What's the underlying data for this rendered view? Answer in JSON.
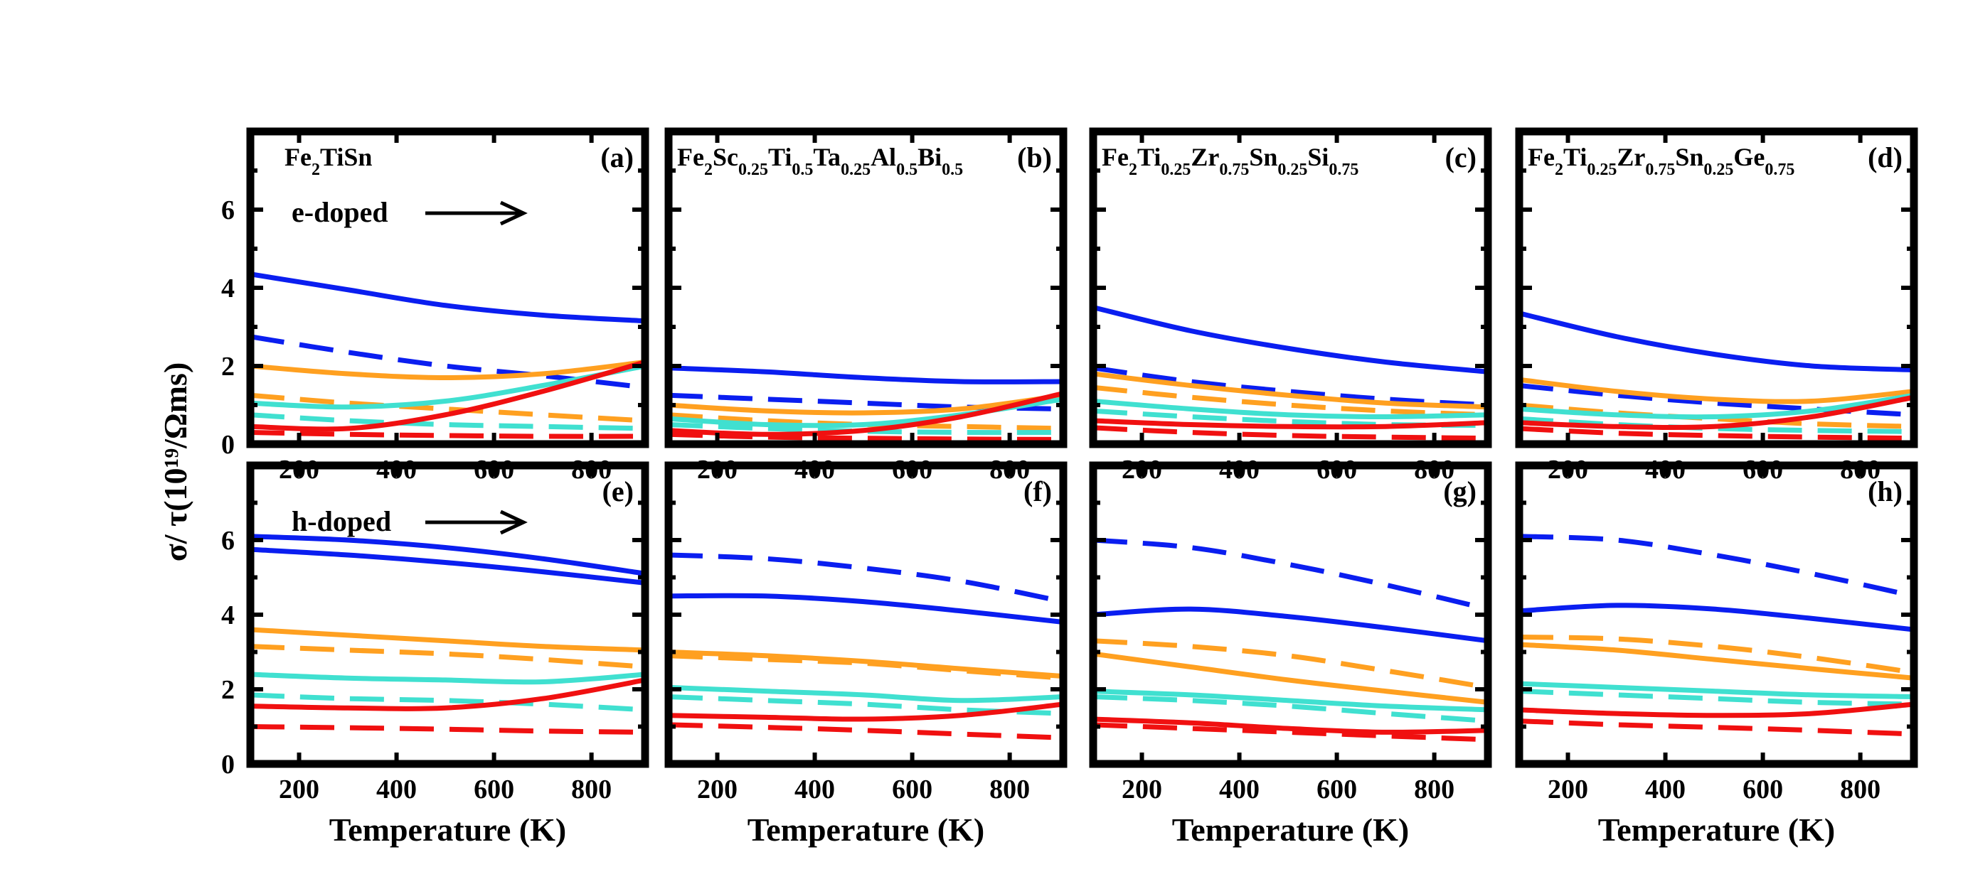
{
  "chart_data": {
    "type": "line",
    "ylabel": "σ/ τ(10¹⁹/Ωms)",
    "xlabel": "Temperature (K)",
    "xlim": [
      100,
      910
    ],
    "ylim": [
      0,
      8
    ],
    "xticks": [
      200,
      400,
      600,
      800
    ],
    "yticks": [
      0,
      2,
      4,
      6
    ],
    "colors": {
      "blue": "#0a1ef0",
      "orange": "#ffa020",
      "cyan": "#40e0d0",
      "red": "#f01010"
    },
    "annotations": {
      "e_doped": "e-doped",
      "h_doped": "h-doped"
    },
    "panels": [
      {
        "id": "a",
        "label": "(a)",
        "title_parts": [
          [
            "Fe",
            "n"
          ],
          [
            "2",
            "s"
          ],
          [
            "TiSn",
            "n"
          ]
        ],
        "annotation": "e_doped",
        "x": [
          100,
          300,
          500,
          700,
          910
        ],
        "series": [
          {
            "color": "blue",
            "style": "solid",
            "values": [
              4.35,
              3.95,
              3.55,
              3.3,
              3.15
            ]
          },
          {
            "color": "blue",
            "style": "dashed",
            "values": [
              2.75,
              2.35,
              2.0,
              1.75,
              1.45
            ]
          },
          {
            "color": "orange",
            "style": "solid",
            "values": [
              2.0,
              1.8,
              1.7,
              1.8,
              2.1
            ]
          },
          {
            "color": "orange",
            "style": "dashed",
            "values": [
              1.25,
              1.05,
              0.9,
              0.75,
              0.6
            ]
          },
          {
            "color": "cyan",
            "style": "solid",
            "values": [
              1.05,
              0.95,
              1.1,
              1.5,
              2.0
            ]
          },
          {
            "color": "cyan",
            "style": "dashed",
            "values": [
              0.75,
              0.6,
              0.5,
              0.45,
              0.4
            ]
          },
          {
            "color": "red",
            "style": "solid",
            "values": [
              0.45,
              0.4,
              0.75,
              1.35,
              2.1
            ]
          },
          {
            "color": "red",
            "style": "dashed",
            "values": [
              0.3,
              0.25,
              0.22,
              0.2,
              0.2
            ]
          }
        ]
      },
      {
        "id": "b",
        "label": "(b)",
        "title_parts": [
          [
            "Fe",
            "n"
          ],
          [
            "2",
            "s"
          ],
          [
            "Sc",
            "n"
          ],
          [
            "0.25",
            "s"
          ],
          [
            "Ti",
            "n"
          ],
          [
            "0.5",
            "s"
          ],
          [
            "Ta",
            "n"
          ],
          [
            "0.25",
            "s"
          ],
          [
            "Al",
            "n"
          ],
          [
            "0.5",
            "s"
          ],
          [
            "Bi",
            "n"
          ],
          [
            "0.5",
            "s"
          ]
        ],
        "annotation": "",
        "x": [
          100,
          300,
          500,
          700,
          910
        ],
        "series": [
          {
            "color": "blue",
            "style": "solid",
            "values": [
              1.95,
              1.85,
              1.7,
              1.6,
              1.6
            ]
          },
          {
            "color": "blue",
            "style": "dashed",
            "values": [
              1.25,
              1.15,
              1.05,
              0.95,
              0.9
            ]
          },
          {
            "color": "orange",
            "style": "solid",
            "values": [
              1.0,
              0.85,
              0.8,
              0.9,
              1.25
            ]
          },
          {
            "color": "orange",
            "style": "dashed",
            "values": [
              0.75,
              0.6,
              0.5,
              0.45,
              0.4
            ]
          },
          {
            "color": "cyan",
            "style": "solid",
            "values": [
              0.65,
              0.5,
              0.5,
              0.75,
              1.15
            ]
          },
          {
            "color": "cyan",
            "style": "dashed",
            "values": [
              0.5,
              0.4,
              0.33,
              0.3,
              0.3
            ]
          },
          {
            "color": "red",
            "style": "solid",
            "values": [
              0.35,
              0.25,
              0.35,
              0.7,
              1.3
            ]
          },
          {
            "color": "red",
            "style": "dashed",
            "values": [
              0.25,
              0.18,
              0.15,
              0.13,
              0.12
            ]
          }
        ]
      },
      {
        "id": "c",
        "label": "(c)",
        "title_parts": [
          [
            "Fe",
            "n"
          ],
          [
            "2",
            "s"
          ],
          [
            "Ti",
            "n"
          ],
          [
            "0.25",
            "s"
          ],
          [
            "Zr",
            "n"
          ],
          [
            "0.75",
            "s"
          ],
          [
            "Sn",
            "n"
          ],
          [
            "0.25",
            "s"
          ],
          [
            "Si",
            "n"
          ],
          [
            "0.75",
            "s"
          ]
        ],
        "annotation": "",
        "x": [
          100,
          300,
          500,
          700,
          910
        ],
        "series": [
          {
            "color": "blue",
            "style": "solid",
            "values": [
              3.5,
              2.9,
              2.45,
              2.1,
              1.85
            ]
          },
          {
            "color": "blue",
            "style": "dashed",
            "values": [
              1.95,
              1.6,
              1.35,
              1.15,
              1.0
            ]
          },
          {
            "color": "orange",
            "style": "solid",
            "values": [
              1.8,
              1.5,
              1.25,
              1.05,
              0.95
            ]
          },
          {
            "color": "orange",
            "style": "dashed",
            "values": [
              1.45,
              1.2,
              1.0,
              0.85,
              0.75
            ]
          },
          {
            "color": "cyan",
            "style": "solid",
            "values": [
              1.1,
              0.9,
              0.75,
              0.7,
              0.75
            ]
          },
          {
            "color": "cyan",
            "style": "dashed",
            "values": [
              0.85,
              0.7,
              0.58,
              0.5,
              0.48
            ]
          },
          {
            "color": "red",
            "style": "solid",
            "values": [
              0.6,
              0.5,
              0.45,
              0.45,
              0.55
            ]
          },
          {
            "color": "red",
            "style": "dashed",
            "values": [
              0.42,
              0.3,
              0.22,
              0.18,
              0.15
            ]
          }
        ]
      },
      {
        "id": "d",
        "label": "(d)",
        "title_parts": [
          [
            "Fe",
            "n"
          ],
          [
            "2",
            "s"
          ],
          [
            "Ti",
            "n"
          ],
          [
            "0.25",
            "s"
          ],
          [
            "Zr",
            "n"
          ],
          [
            "0.75",
            "s"
          ],
          [
            "Sn",
            "n"
          ],
          [
            "0.25",
            "s"
          ],
          [
            "Ge",
            "n"
          ],
          [
            "0.75",
            "s"
          ]
        ],
        "annotation": "",
        "x": [
          100,
          300,
          500,
          700,
          910
        ],
        "series": [
          {
            "color": "blue",
            "style": "solid",
            "values": [
              3.35,
              2.75,
              2.3,
              2.0,
              1.9
            ]
          },
          {
            "color": "blue",
            "style": "dashed",
            "values": [
              1.5,
              1.25,
              1.05,
              0.9,
              0.75
            ]
          },
          {
            "color": "orange",
            "style": "solid",
            "values": [
              1.65,
              1.35,
              1.15,
              1.1,
              1.35
            ]
          },
          {
            "color": "orange",
            "style": "dashed",
            "values": [
              1.0,
              0.8,
              0.65,
              0.52,
              0.45
            ]
          },
          {
            "color": "cyan",
            "style": "solid",
            "values": [
              0.9,
              0.75,
              0.7,
              0.85,
              1.25
            ]
          },
          {
            "color": "cyan",
            "style": "dashed",
            "values": [
              0.65,
              0.5,
              0.4,
              0.35,
              0.32
            ]
          },
          {
            "color": "red",
            "style": "solid",
            "values": [
              0.55,
              0.45,
              0.45,
              0.7,
              1.2
            ]
          },
          {
            "color": "red",
            "style": "dashed",
            "values": [
              0.4,
              0.28,
              0.22,
              0.18,
              0.15
            ]
          }
        ]
      },
      {
        "id": "e",
        "label": "(e)",
        "title_parts": [],
        "annotation": "h_doped",
        "x": [
          100,
          300,
          500,
          700,
          910
        ],
        "series": [
          {
            "color": "blue",
            "style": "solid",
            "values": [
              6.1,
              6.0,
              5.8,
              5.5,
              5.1
            ]
          },
          {
            "color": "blue",
            "style": "solid",
            "values": [
              5.75,
              5.6,
              5.4,
              5.15,
              4.85
            ]
          },
          {
            "color": "orange",
            "style": "solid",
            "values": [
              3.6,
              3.45,
              3.3,
              3.15,
              3.05
            ]
          },
          {
            "color": "orange",
            "style": "dashed",
            "values": [
              3.15,
              3.05,
              2.95,
              2.8,
              2.6
            ]
          },
          {
            "color": "cyan",
            "style": "solid",
            "values": [
              2.4,
              2.3,
              2.25,
              2.2,
              2.4
            ]
          },
          {
            "color": "cyan",
            "style": "dashed",
            "values": [
              1.85,
              1.75,
              1.7,
              1.6,
              1.45
            ]
          },
          {
            "color": "red",
            "style": "solid",
            "values": [
              1.55,
              1.5,
              1.5,
              1.75,
              2.25
            ]
          },
          {
            "color": "red",
            "style": "dashed",
            "values": [
              1.0,
              0.97,
              0.93,
              0.88,
              0.85
            ]
          }
        ]
      },
      {
        "id": "f",
        "label": "(f)",
        "title_parts": [],
        "annotation": "",
        "x": [
          100,
          300,
          500,
          700,
          910
        ],
        "series": [
          {
            "color": "blue",
            "style": "dashed",
            "values": [
              5.6,
              5.5,
              5.25,
              4.9,
              4.35
            ]
          },
          {
            "color": "blue",
            "style": "solid",
            "values": [
              4.5,
              4.5,
              4.35,
              4.1,
              3.8
            ]
          },
          {
            "color": "orange",
            "style": "solid",
            "values": [
              3.0,
              2.9,
              2.75,
              2.55,
              2.35
            ]
          },
          {
            "color": "orange",
            "style": "dashed",
            "values": [
              2.9,
              2.8,
              2.7,
              2.5,
              2.3
            ]
          },
          {
            "color": "cyan",
            "style": "solid",
            "values": [
              2.05,
              1.95,
              1.85,
              1.7,
              1.8
            ]
          },
          {
            "color": "cyan",
            "style": "dashed",
            "values": [
              1.8,
              1.7,
              1.6,
              1.45,
              1.35
            ]
          },
          {
            "color": "red",
            "style": "solid",
            "values": [
              1.3,
              1.25,
              1.2,
              1.3,
              1.6
            ]
          },
          {
            "color": "red",
            "style": "dashed",
            "values": [
              1.05,
              0.98,
              0.9,
              0.8,
              0.7
            ]
          }
        ]
      },
      {
        "id": "g",
        "label": "(g)",
        "title_parts": [],
        "annotation": "",
        "x": [
          100,
          300,
          500,
          700,
          910
        ],
        "series": [
          {
            "color": "blue",
            "style": "dashed",
            "values": [
              6.0,
              5.8,
              5.35,
              4.8,
              4.15
            ]
          },
          {
            "color": "blue",
            "style": "solid",
            "values": [
              4.0,
              4.15,
              3.95,
              3.65,
              3.3
            ]
          },
          {
            "color": "orange",
            "style": "dashed",
            "values": [
              3.3,
              3.15,
              2.9,
              2.5,
              2.05
            ]
          },
          {
            "color": "orange",
            "style": "solid",
            "values": [
              2.95,
              2.6,
              2.25,
              1.95,
              1.65
            ]
          },
          {
            "color": "cyan",
            "style": "solid",
            "values": [
              1.95,
              1.85,
              1.7,
              1.55,
              1.45
            ]
          },
          {
            "color": "cyan",
            "style": "dashed",
            "values": [
              1.8,
              1.7,
              1.55,
              1.35,
              1.15
            ]
          },
          {
            "color": "red",
            "style": "solid",
            "values": [
              1.2,
              1.1,
              0.95,
              0.85,
              0.9
            ]
          },
          {
            "color": "red",
            "style": "dashed",
            "values": [
              1.05,
              0.95,
              0.85,
              0.75,
              0.65
            ]
          }
        ]
      },
      {
        "id": "h",
        "label": "(h)",
        "title_parts": [],
        "annotation": "",
        "x": [
          100,
          300,
          500,
          700,
          910
        ],
        "series": [
          {
            "color": "blue",
            "style": "dashed",
            "values": [
              6.1,
              6.0,
              5.6,
              5.1,
              4.5
            ]
          },
          {
            "color": "blue",
            "style": "solid",
            "values": [
              4.1,
              4.25,
              4.15,
              3.9,
              3.6
            ]
          },
          {
            "color": "orange",
            "style": "dashed",
            "values": [
              3.4,
              3.35,
              3.15,
              2.85,
              2.45
            ]
          },
          {
            "color": "orange",
            "style": "solid",
            "values": [
              3.2,
              3.05,
              2.8,
              2.55,
              2.3
            ]
          },
          {
            "color": "cyan",
            "style": "solid",
            "values": [
              2.15,
              2.05,
              1.95,
              1.85,
              1.8
            ]
          },
          {
            "color": "cyan",
            "style": "dashed",
            "values": [
              1.95,
              1.85,
              1.75,
              1.65,
              1.6
            ]
          },
          {
            "color": "red",
            "style": "solid",
            "values": [
              1.45,
              1.35,
              1.3,
              1.35,
              1.6
            ]
          },
          {
            "color": "red",
            "style": "dashed",
            "values": [
              1.15,
              1.05,
              0.98,
              0.9,
              0.8
            ]
          }
        ]
      }
    ]
  }
}
